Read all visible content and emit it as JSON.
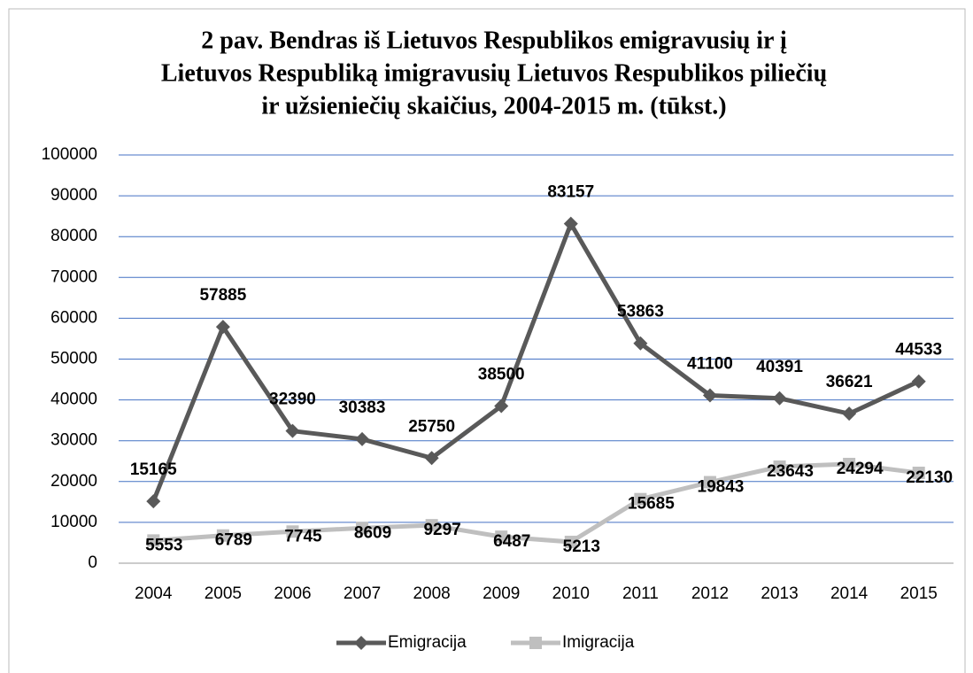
{
  "chart_data": {
    "type": "line",
    "title": [
      "2 pav. Bendras iš Lietuvos Respublikos emigravusių ir į",
      "Lietuvos Respubliką imigravusių Lietuvos Respublikos piliečių",
      "ir užsieniečių skaičius, 2004-2015 m. (tūkst.)"
    ],
    "categories": [
      "2004",
      "2005",
      "2006",
      "2007",
      "2008",
      "2009",
      "2010",
      "2011",
      "2012",
      "2013",
      "2014",
      "2015"
    ],
    "series": [
      {
        "name": "Emigracija",
        "color": "#595959",
        "marker": "diamond",
        "values": [
          15165,
          57885,
          32390,
          30383,
          25750,
          38500,
          83157,
          53863,
          41100,
          40391,
          36621,
          44533
        ]
      },
      {
        "name": "Imigracija",
        "color": "#bfbfbf",
        "marker": "square",
        "values": [
          5553,
          6789,
          7745,
          8609,
          9297,
          6487,
          5213,
          15685,
          19843,
          23643,
          24294,
          22130
        ]
      }
    ],
    "ylim": [
      0,
      100000
    ],
    "yticks": [
      0,
      10000,
      20000,
      30000,
      40000,
      50000,
      60000,
      70000,
      80000,
      90000,
      100000
    ],
    "grid": true,
    "legend": "bottom"
  }
}
